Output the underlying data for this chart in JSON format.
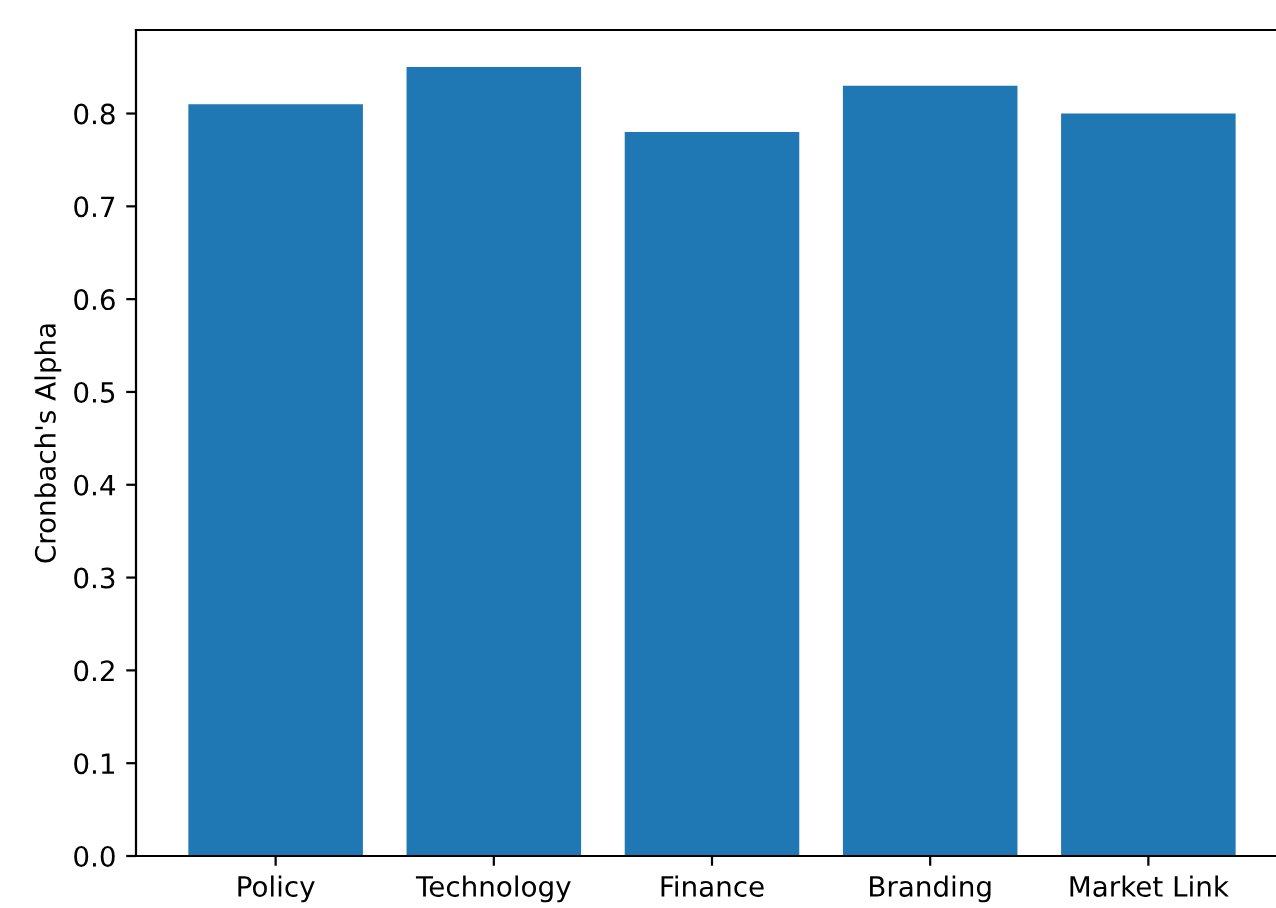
{
  "chart_data": {
    "type": "bar",
    "ylabel": "Cronbach's Alpha",
    "categories": [
      "Policy",
      "Technology",
      "Finance",
      "Branding",
      "Market Link"
    ],
    "values": [
      0.81,
      0.85,
      0.78,
      0.83,
      0.8
    ],
    "color": "#1f77b4",
    "ylim": [
      0,
      0.89
    ],
    "yticks": [
      {
        "value": 0,
        "label": "0.0"
      },
      0.1,
      0.2,
      0.3,
      0.4,
      0.5,
      0.6,
      0.7,
      0.8
    ],
    "grid": false,
    "legend": false
  }
}
